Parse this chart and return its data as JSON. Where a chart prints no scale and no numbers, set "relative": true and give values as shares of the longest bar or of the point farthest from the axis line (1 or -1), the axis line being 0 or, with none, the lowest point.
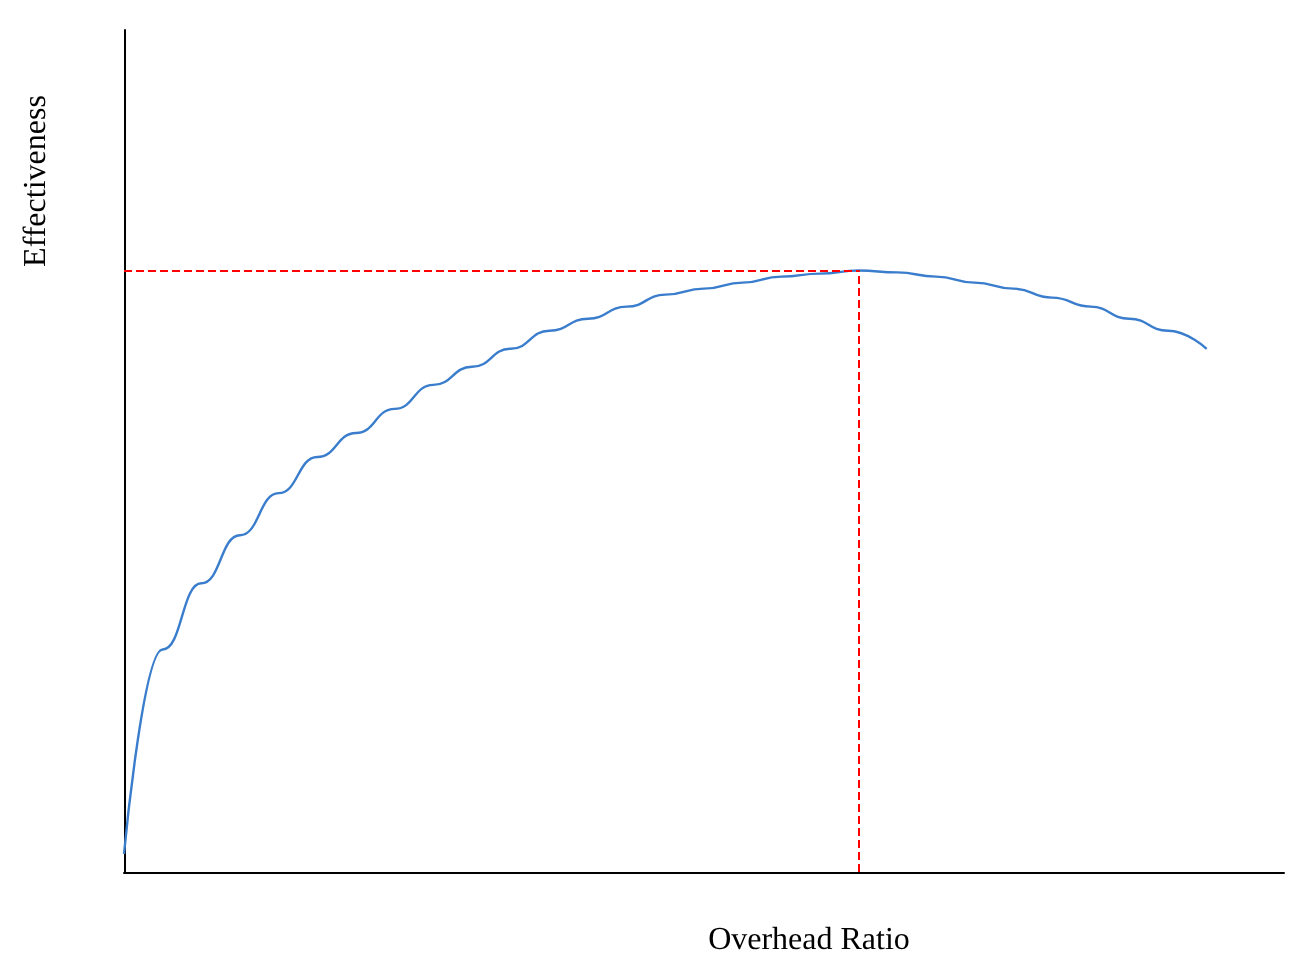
{
  "chart_data": {
    "type": "line",
    "relative": true,
    "xlabel": "Overhead Ratio",
    "ylabel": "Effectiveness",
    "categories": [
      null,
      null,
      null,
      null,
      null,
      null,
      null,
      null,
      null,
      null,
      null,
      null,
      null,
      null,
      null,
      null,
      null,
      null,
      null,
      null,
      null,
      null,
      null,
      null,
      null,
      null,
      null,
      null,
      null,
      null,
      null
    ],
    "series": [
      {
        "color": "#3a7dcc",
        "values": [
          0.03,
          0.37,
          0.48,
          0.56,
          0.63,
          0.69,
          0.73,
          0.77,
          0.81,
          0.84,
          0.87,
          0.9,
          0.92,
          0.94,
          0.96,
          0.97,
          0.98,
          0.99,
          0.995,
          1,
          0.997,
          0.99,
          0.98,
          0.97,
          0.955,
          0.94,
          0.92,
          0.9,
          0.87,
          null,
          null
        ]
      }
    ],
    "ref_lines": [
      {
        "axis": "y",
        "value": 1,
        "color": "#ff0000",
        "line_style": "dashed"
      }
    ],
    "marker": "none",
    "line_style": "solid",
    "grid": false
  }
}
